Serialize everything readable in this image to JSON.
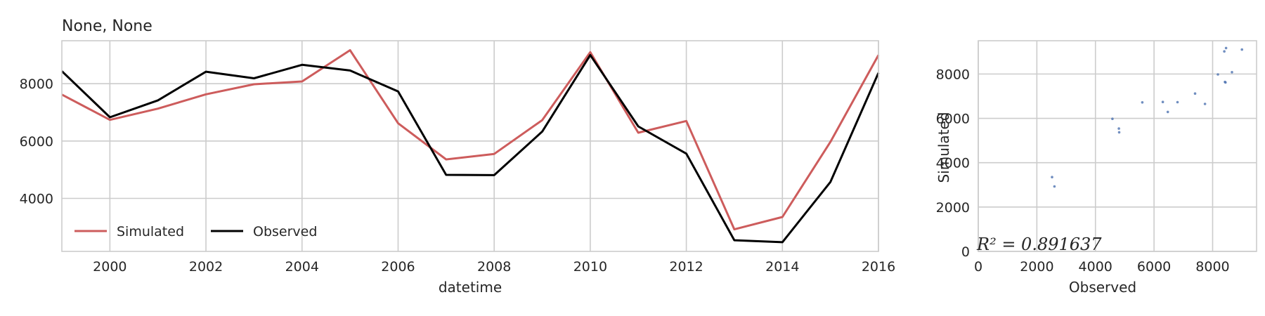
{
  "chart_data": [
    {
      "type": "line",
      "title": "None, None",
      "xlabel": "datetime",
      "ylabel": "",
      "xlim": [
        1999,
        2016
      ],
      "ylim": [
        2150,
        9500
      ],
      "x_ticks": [
        2000,
        2002,
        2004,
        2006,
        2008,
        2010,
        2012,
        2014,
        2016
      ],
      "y_ticks": [
        4000,
        6000,
        8000
      ],
      "grid": true,
      "legend_position": "lower-left",
      "x": [
        1999,
        2000,
        2001,
        2002,
        2003,
        2004,
        2005,
        2006,
        2007,
        2008,
        2009,
        2010,
        2011,
        2012,
        2013,
        2014,
        2015,
        2016
      ],
      "series": [
        {
          "name": "Simulated",
          "color": "#cd5c5c",
          "values": [
            7620,
            6740,
            7130,
            7630,
            7980,
            8080,
            9170,
            6620,
            5360,
            5550,
            6730,
            9100,
            6290,
            6700,
            2920,
            3350,
            5970,
            9000
          ]
        },
        {
          "name": "Observed",
          "color": "#000000",
          "values": [
            8440,
            6830,
            7420,
            8420,
            8190,
            8660,
            8460,
            7730,
            4820,
            4810,
            6330,
            9000,
            6510,
            5560,
            2540,
            2470,
            4570,
            8380
          ]
        }
      ]
    },
    {
      "type": "scatter",
      "xlabel": "Observed",
      "ylabel": "Simulated",
      "xlim": [
        0,
        9500
      ],
      "ylim": [
        0,
        9500
      ],
      "x_ticks": [
        0,
        2000,
        4000,
        6000,
        8000
      ],
      "y_ticks": [
        0,
        2000,
        4000,
        6000,
        8000
      ],
      "grid": true,
      "point_color": "#4c72b0",
      "points": [
        [
          2520,
          3350
        ],
        [
          2600,
          2930
        ],
        [
          4580,
          5980
        ],
        [
          4800,
          5540
        ],
        [
          4810,
          5370
        ],
        [
          5600,
          6720
        ],
        [
          6300,
          6740
        ],
        [
          6470,
          6290
        ],
        [
          6800,
          6730
        ],
        [
          7400,
          7120
        ],
        [
          7740,
          6650
        ],
        [
          8180,
          7980
        ],
        [
          8420,
          7640
        ],
        [
          8440,
          7620
        ],
        [
          8400,
          9020
        ],
        [
          8460,
          9170
        ],
        [
          8660,
          8080
        ],
        [
          9000,
          9100
        ]
      ],
      "annotation": "R² = 0.891637"
    }
  ]
}
